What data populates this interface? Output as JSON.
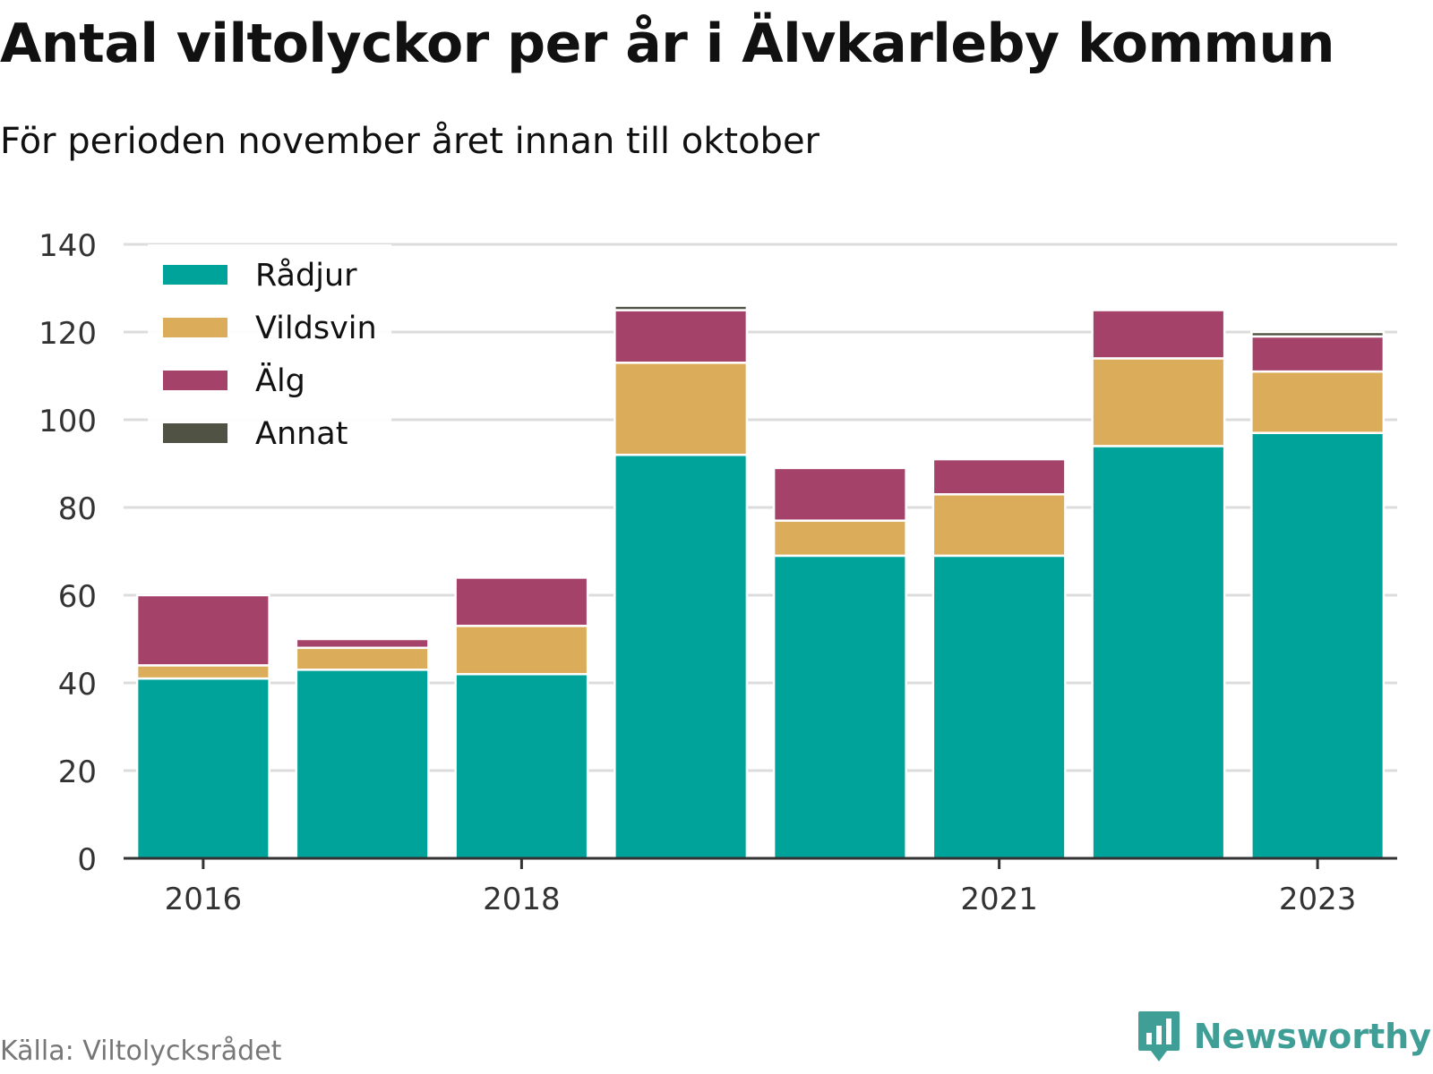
{
  "header": {
    "title": "Antal viltolyckor per år i Älvkarleby kommun",
    "subtitle": "För perioden november året innan till oktober"
  },
  "footer": {
    "source": "Källa: Viltolycksrådet",
    "brand": "Newsworthy",
    "brand_icon": "newsworthy-logo-icon",
    "brand_color": "#3f9e95"
  },
  "chart_data": {
    "type": "bar",
    "stacked": true,
    "title": "Antal viltolyckor per år i Älvkarleby kommun",
    "subtitle": "För perioden november året innan till oktober",
    "categories": [
      "2016",
      "2017",
      "2018",
      "2019",
      "2020",
      "2021",
      "2022",
      "2023"
    ],
    "x_tick_labels": [
      "2016",
      "",
      "2018",
      "",
      "",
      "2021",
      "",
      "2023"
    ],
    "y_ticks": [
      0,
      20,
      40,
      60,
      80,
      100,
      120,
      140
    ],
    "ylim": [
      0,
      140
    ],
    "grid": true,
    "legend_position": "top-left",
    "series": [
      {
        "name": "Rådjur",
        "color": "#00a39a",
        "values": [
          41,
          43,
          42,
          92,
          69,
          69,
          94,
          97
        ]
      },
      {
        "name": "Vildsvin",
        "color": "#dbad5b",
        "values": [
          3,
          5,
          11,
          21,
          8,
          14,
          20,
          14
        ]
      },
      {
        "name": "Älg",
        "color": "#a54269",
        "values": [
          16,
          2,
          11,
          12,
          12,
          8,
          11,
          8
        ]
      },
      {
        "name": "Annat",
        "color": "#505243",
        "values": [
          0,
          0,
          0,
          1,
          0,
          0,
          0,
          1
        ]
      }
    ]
  }
}
